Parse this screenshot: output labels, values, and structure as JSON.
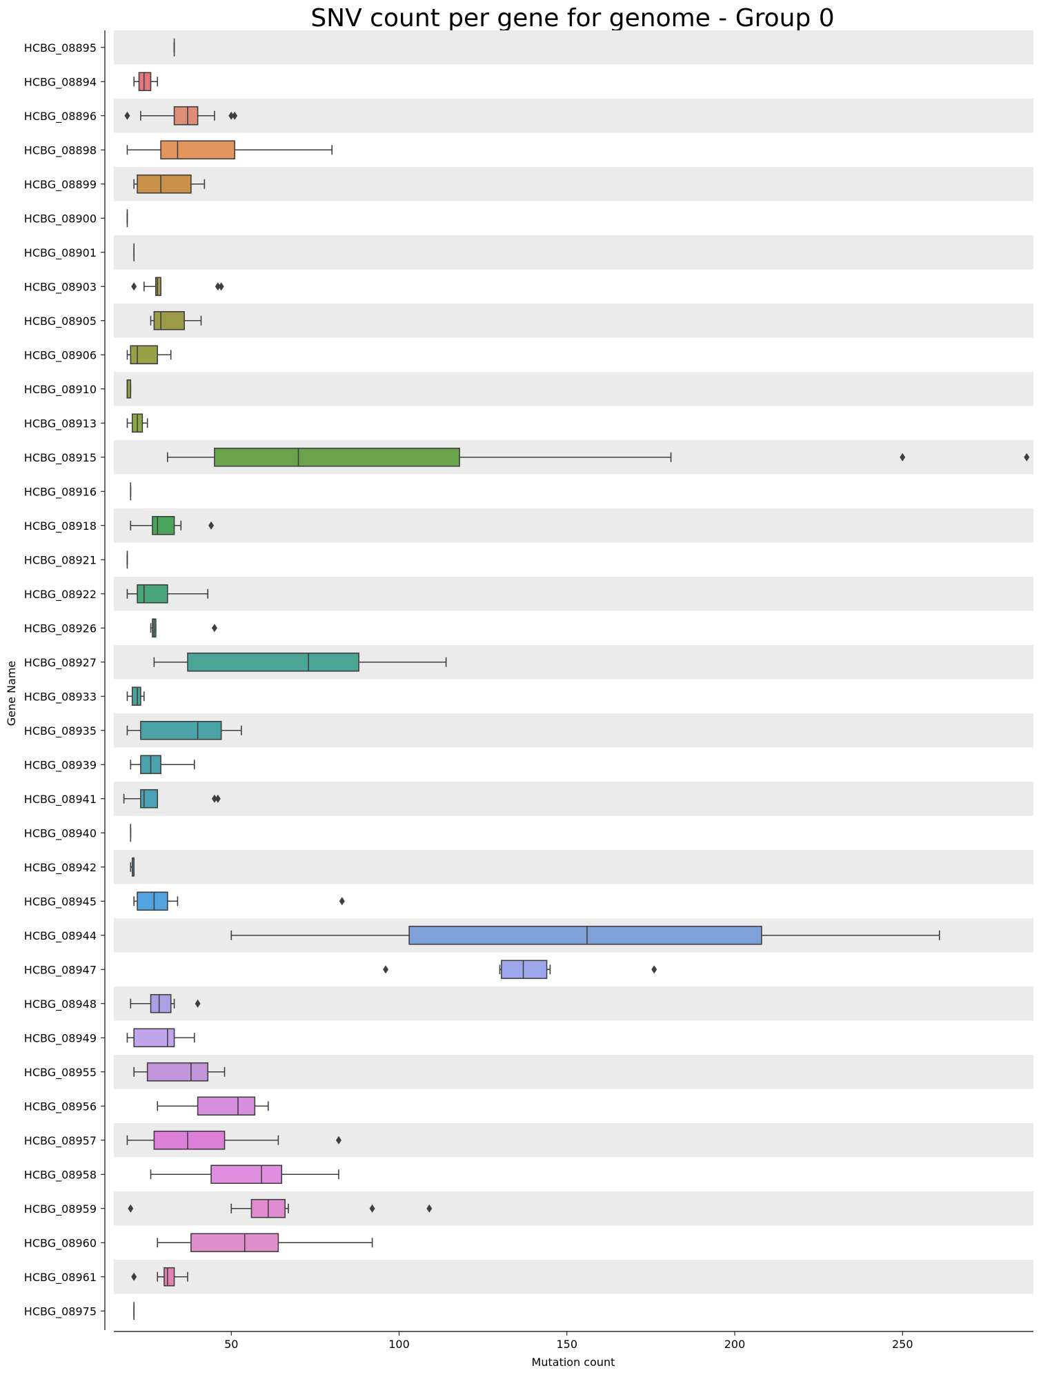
{
  "chart_data": {
    "type": "boxplot",
    "orientation": "horizontal",
    "title": "SNV count per gene for genome - Group 0",
    "xlabel": "Mutation count",
    "ylabel": "Gene Name",
    "xlim": [
      15,
      289
    ],
    "xticks": [
      50,
      100,
      150,
      200,
      250
    ],
    "grid": false,
    "alternate_row_shading": true,
    "colors": {
      "row_band": "#ebebeb",
      "box_edge": "#3f3f3f"
    },
    "series": [
      {
        "gene": "HCBG_08895",
        "color": "#e8e8e8",
        "min": 33,
        "q1": 33,
        "median": 33,
        "q3": 33,
        "max": 33,
        "outliers": []
      },
      {
        "gene": "HCBG_08894",
        "color": "#e5777c",
        "min": 21,
        "q1": 22.5,
        "median": 24,
        "q3": 26,
        "max": 28,
        "outliers": []
      },
      {
        "gene": "HCBG_08896",
        "color": "#dc8f76",
        "min": 23,
        "q1": 33,
        "median": 37,
        "q3": 40,
        "max": 45,
        "outliers": [
          19,
          50,
          51
        ]
      },
      {
        "gene": "HCBG_08898",
        "color": "#e4965e",
        "min": 19,
        "q1": 29,
        "median": 34,
        "q3": 51,
        "max": 80,
        "outliers": []
      },
      {
        "gene": "HCBG_08899",
        "color": "#c9904a",
        "min": 21,
        "q1": 22,
        "median": 29,
        "q3": 38,
        "max": 42,
        "outliers": []
      },
      {
        "gene": "HCBG_08900",
        "color": "#c49a4a",
        "min": 19,
        "q1": 19,
        "median": 19,
        "q3": 19,
        "max": 19,
        "outliers": []
      },
      {
        "gene": "HCBG_08901",
        "color": "#b59b49",
        "min": 21,
        "q1": 21,
        "median": 21,
        "q3": 21,
        "max": 21,
        "outliers": []
      },
      {
        "gene": "HCBG_08903",
        "color": "#a89d48",
        "min": 24,
        "q1": 27.5,
        "median": 28,
        "q3": 29,
        "max": 29,
        "outliers": [
          21,
          46,
          47
        ]
      },
      {
        "gene": "HCBG_08905",
        "color": "#9b9b47",
        "min": 26,
        "q1": 27,
        "median": 29,
        "q3": 36,
        "max": 41,
        "outliers": []
      },
      {
        "gene": "HCBG_08906",
        "color": "#97a248",
        "min": 19,
        "q1": 20,
        "median": 22,
        "q3": 28,
        "max": 32,
        "outliers": []
      },
      {
        "gene": "HCBG_08910",
        "color": "#93a64a",
        "min": 19,
        "q1": 19,
        "median": 19,
        "q3": 20,
        "max": 20,
        "outliers": []
      },
      {
        "gene": "HCBG_08913",
        "color": "#8ba84b",
        "min": 19,
        "q1": 20.5,
        "median": 22,
        "q3": 23.5,
        "max": 25,
        "outliers": []
      },
      {
        "gene": "HCBG_08915",
        "color": "#6aa34c",
        "min": 31,
        "q1": 45,
        "median": 70,
        "q3": 118,
        "max": 181,
        "outliers": [
          250,
          287
        ]
      },
      {
        "gene": "HCBG_08916",
        "color": "#5eaa55",
        "min": 20,
        "q1": 20,
        "median": 20,
        "q3": 20,
        "max": 20,
        "outliers": []
      },
      {
        "gene": "HCBG_08918",
        "color": "#4aa45c",
        "min": 20,
        "q1": 26.5,
        "median": 28,
        "q3": 33,
        "max": 35,
        "outliers": [
          44
        ]
      },
      {
        "gene": "HCBG_08921",
        "color": "#49a56d",
        "min": 19,
        "q1": 19,
        "median": 19,
        "q3": 19,
        "max": 19,
        "outliers": []
      },
      {
        "gene": "HCBG_08922",
        "color": "#49a57a",
        "min": 19,
        "q1": 22,
        "median": 24,
        "q3": 31,
        "max": 43,
        "outliers": []
      },
      {
        "gene": "HCBG_08926",
        "color": "#4aa58a",
        "min": 26,
        "q1": 26.5,
        "median": 27,
        "q3": 27.5,
        "max": 27.5,
        "outliers": [
          45
        ]
      },
      {
        "gene": "HCBG_08927",
        "color": "#4aa595",
        "min": 27,
        "q1": 37,
        "median": 73,
        "q3": 88,
        "max": 114,
        "outliers": []
      },
      {
        "gene": "HCBG_08933",
        "color": "#4aa49e",
        "min": 19,
        "q1": 20.5,
        "median": 22,
        "q3": 23,
        "max": 24,
        "outliers": []
      },
      {
        "gene": "HCBG_08935",
        "color": "#4aa3a6",
        "min": 19,
        "q1": 23,
        "median": 40,
        "q3": 47,
        "max": 53,
        "outliers": []
      },
      {
        "gene": "HCBG_08939",
        "color": "#49a3ad",
        "min": 20,
        "q1": 23,
        "median": 26,
        "q3": 29,
        "max": 39,
        "outliers": []
      },
      {
        "gene": "HCBG_08941",
        "color": "#4aa2b6",
        "min": 18,
        "q1": 23,
        "median": 24,
        "q3": 28,
        "max": 28,
        "outliers": [
          45,
          46
        ]
      },
      {
        "gene": "HCBG_08940",
        "color": "#4ba0bf",
        "min": 20,
        "q1": 20,
        "median": 20,
        "q3": 20,
        "max": 20,
        "outliers": []
      },
      {
        "gene": "HCBG_08942",
        "color": "#4d9ec9",
        "min": 20,
        "q1": 20.5,
        "median": 21,
        "q3": 21,
        "max": 21,
        "outliers": []
      },
      {
        "gene": "HCBG_08945",
        "color": "#53a3de",
        "min": 21,
        "q1": 22,
        "median": 27,
        "q3": 31,
        "max": 34,
        "outliers": [
          83
        ]
      },
      {
        "gene": "HCBG_08944",
        "color": "#7da1d8",
        "min": 50,
        "q1": 103,
        "median": 156,
        "q3": 208,
        "max": 261,
        "outliers": []
      },
      {
        "gene": "HCBG_08947",
        "color": "#9da7eb",
        "min": 130,
        "q1": 130.5,
        "median": 137,
        "q3": 144,
        "max": 145,
        "outliers": [
          96,
          176
        ]
      },
      {
        "gene": "HCBG_08948",
        "color": "#a9a0e6",
        "min": 20,
        "q1": 26,
        "median": 28.5,
        "q3": 32,
        "max": 33,
        "outliers": [
          40
        ]
      },
      {
        "gene": "HCBG_08949",
        "color": "#c1a5ec",
        "min": 19,
        "q1": 21,
        "median": 31,
        "q3": 33,
        "max": 39,
        "outliers": []
      },
      {
        "gene": "HCBG_08955",
        "color": "#c295da",
        "min": 21,
        "q1": 25,
        "median": 38,
        "q3": 43,
        "max": 48,
        "outliers": []
      },
      {
        "gene": "HCBG_08956",
        "color": "#d88fe0",
        "min": 28,
        "q1": 40,
        "median": 52,
        "q3": 57,
        "max": 61,
        "outliers": []
      },
      {
        "gene": "HCBG_08957",
        "color": "#dc7fd8",
        "min": 19,
        "q1": 27,
        "median": 37,
        "q3": 48,
        "max": 64,
        "outliers": [
          82
        ]
      },
      {
        "gene": "HCBG_08958",
        "color": "#e08ee0",
        "min": 26,
        "q1": 44,
        "median": 59,
        "q3": 65,
        "max": 82,
        "outliers": []
      },
      {
        "gene": "HCBG_08959",
        "color": "#e08ad0",
        "min": 50,
        "q1": 56,
        "median": 61,
        "q3": 66,
        "max": 67,
        "outliers": [
          20,
          92,
          109
        ]
      },
      {
        "gene": "HCBG_08960",
        "color": "#e18ecc",
        "min": 28,
        "q1": 38,
        "median": 54,
        "q3": 64,
        "max": 92,
        "outliers": []
      },
      {
        "gene": "HCBG_08961",
        "color": "#e27fb3",
        "min": 28,
        "q1": 30,
        "median": 31,
        "q3": 33,
        "max": 37,
        "outliers": [
          21
        ]
      },
      {
        "gene": "HCBG_08975",
        "color": "#e8e8e8",
        "min": 21,
        "q1": 21,
        "median": 21,
        "q3": 21,
        "max": 21,
        "outliers": []
      }
    ]
  }
}
